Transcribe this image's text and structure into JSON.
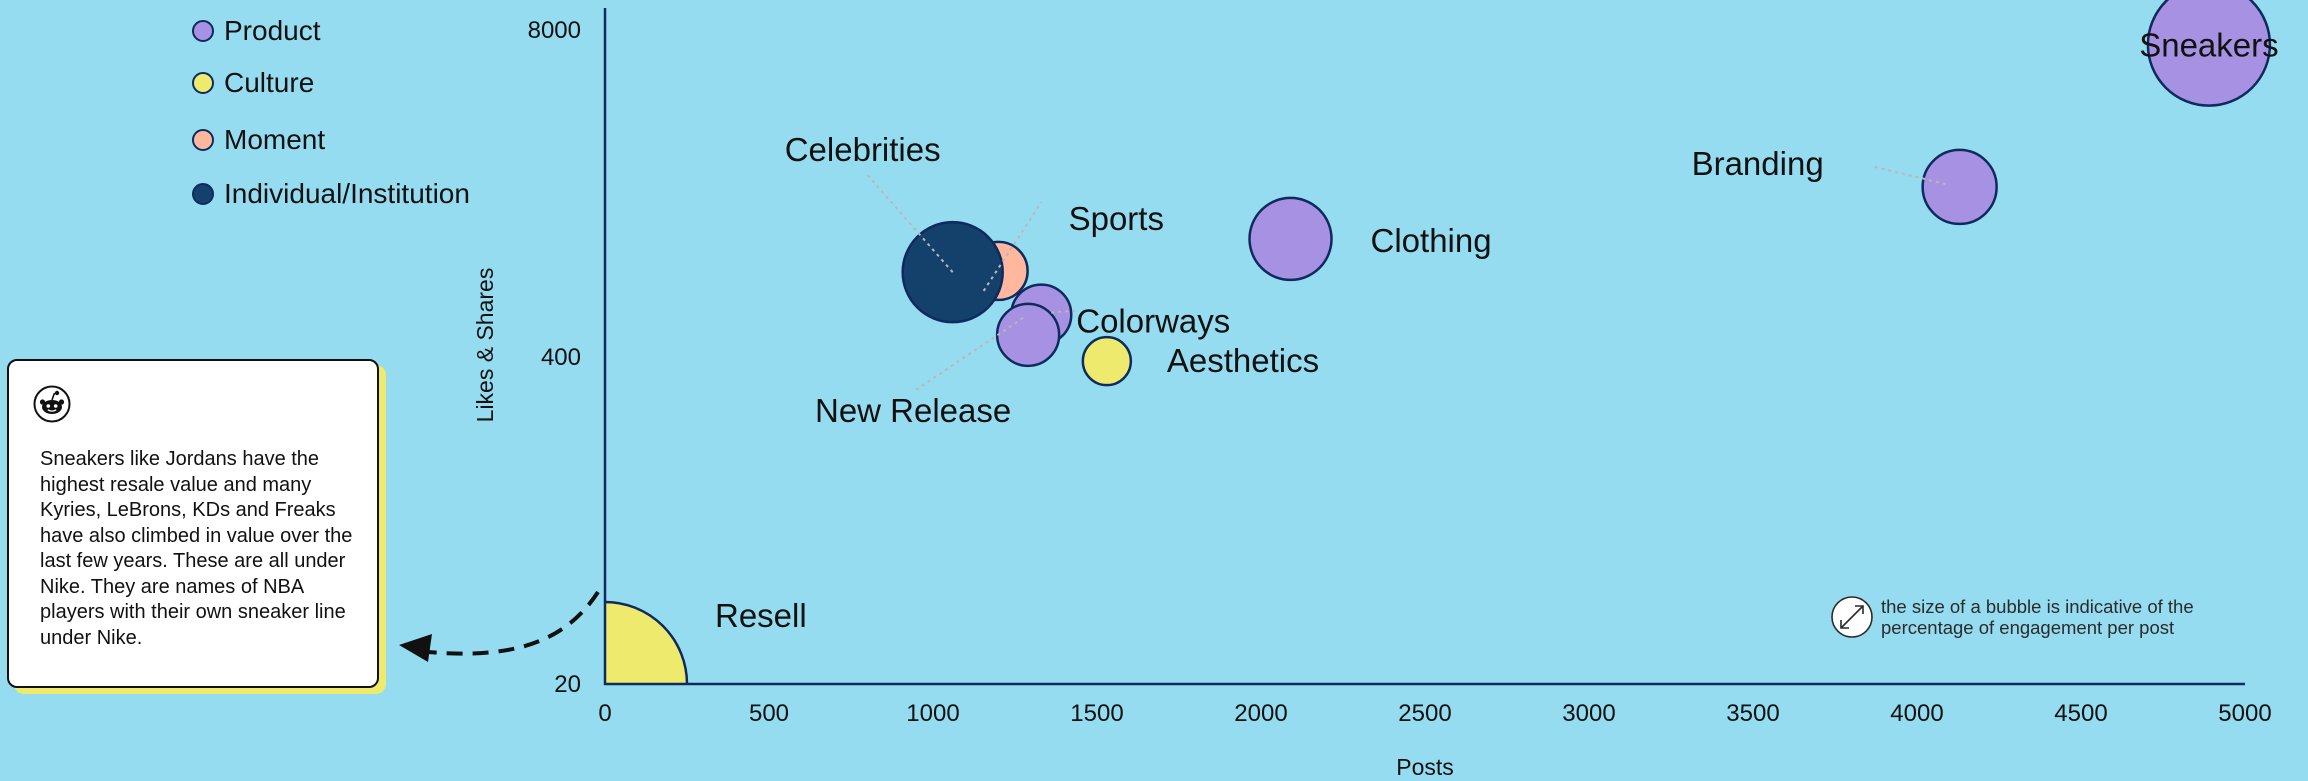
{
  "chart_data": {
    "type": "scatter",
    "subtype": "bubble",
    "xlabel": "Posts",
    "ylabel": "Likes & Shares",
    "xlim": [
      0,
      5000
    ],
    "ylim": [
      20,
      8000
    ],
    "yscale": "log",
    "x_ticks": [
      "0",
      "500",
      "1000",
      "1500",
      "2000",
      "2500",
      "3000",
      "3500",
      "4000",
      "4500",
      "5000"
    ],
    "y_ticks": [
      "20",
      "400",
      "8000"
    ],
    "legend_position": "top-left",
    "legend": [
      {
        "name": "Product",
        "color": "#a791e2"
      },
      {
        "name": "Culture",
        "color": "#eeea6e"
      },
      {
        "name": "Moment",
        "color": "#ffb79d"
      },
      {
        "name": "Individual/Institution",
        "color": "#14416c"
      }
    ],
    "series": [
      {
        "name": "Product",
        "color": "#a791e2",
        "points": [
          {
            "label": "Sneakers",
            "x": 4890,
            "y": 7000,
            "size": 61
          },
          {
            "label": "Branding",
            "x": 4130,
            "y": 1900,
            "size": 37
          },
          {
            "label": "Clothing",
            "x": 2090,
            "y": 1180,
            "size": 41
          },
          {
            "label": "Colorways",
            "x": 1330,
            "y": 590,
            "size": 30
          },
          {
            "label": "New Release",
            "x": 1290,
            "y": 490,
            "size": 31
          }
        ]
      },
      {
        "name": "Culture",
        "color": "#eeea6e",
        "points": [
          {
            "label": "Aesthetics",
            "x": 1530,
            "y": 385,
            "size": 24
          },
          {
            "label": "Resell",
            "x": 0,
            "y": 20,
            "size": 82
          }
        ]
      },
      {
        "name": "Moment",
        "color": "#ffb79d",
        "points": [
          {
            "label": "Sports",
            "x": 1200,
            "y": 880,
            "size": 29
          }
        ]
      },
      {
        "name": "Individual/Institution",
        "color": "#14416c",
        "points": [
          {
            "label": "Celebrities",
            "x": 1060,
            "y": 870,
            "size": 50
          }
        ]
      }
    ]
  },
  "callout": {
    "icon": "reddit-icon",
    "text": "Sneakers like Jordans have the highest resale value and many Kyries, LeBrons, KDs and Freaks have also climbed in value over the last few years. These are all under Nike. They are names of NBA players with their own sneaker line under Nike."
  },
  "size_note": {
    "icon": "bubble-size-icon",
    "text": "the size of a bubble is indicative of the percentage of engagement per post"
  },
  "colors": {
    "background": "#95dcf0",
    "axis": "#0f2a5c",
    "callout_shadow": "#eeea6e"
  }
}
